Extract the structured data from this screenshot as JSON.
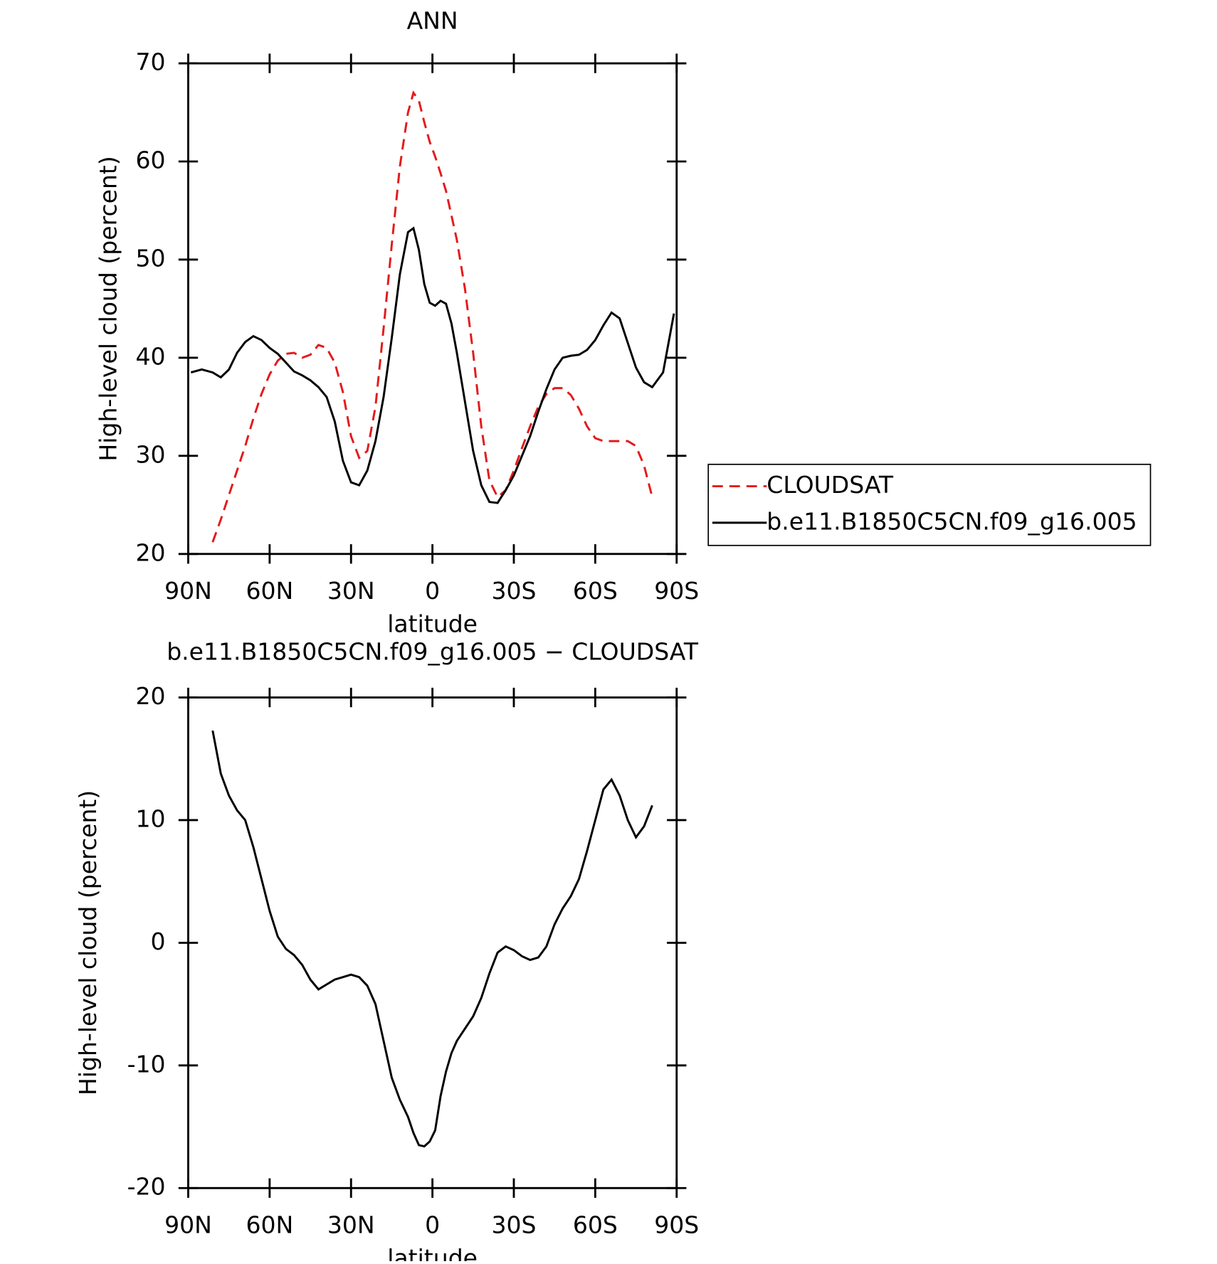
{
  "chart_data": [
    {
      "type": "line",
      "title": "ANN",
      "xlabel": "latitude",
      "ylabel": "High-level cloud (percent)",
      "x": [
        89,
        85,
        81,
        78,
        75,
        72,
        69,
        66,
        63,
        60,
        57,
        54,
        51,
        48,
        45,
        42,
        39,
        36,
        33,
        30,
        27,
        24,
        21,
        18,
        15,
        12,
        9,
        7,
        5,
        3,
        1,
        -1,
        -3,
        -5,
        -7,
        -9,
        -12,
        -15,
        -18,
        -21,
        -24,
        -27,
        -30,
        -33,
        -36,
        -39,
        -42,
        -45,
        -48,
        -51,
        -54,
        -57,
        -60,
        -63,
        -66,
        -69,
        -72,
        -75,
        -78,
        -81,
        -85,
        -89
      ],
      "series": [
        {
          "name": "CLOUDSAT",
          "color": "#e41a1c",
          "dashed": true,
          "values": [
            null,
            null,
            21.2,
            23.5,
            26.0,
            28.5,
            31.0,
            33.8,
            36.3,
            38.3,
            39.7,
            40.4,
            40.5,
            40.0,
            40.3,
            41.3,
            41.0,
            39.5,
            36.5,
            32.0,
            29.8,
            30.5,
            35.0,
            43.0,
            51.5,
            59.5,
            65.0,
            67.0,
            66.2,
            64.0,
            62.0,
            60.5,
            58.8,
            57.0,
            54.5,
            52.0,
            47.0,
            40.5,
            33.0,
            27.5,
            25.8,
            26.5,
            28.5,
            30.8,
            33.0,
            35.0,
            36.3,
            36.9,
            36.9,
            36.2,
            34.8,
            33.0,
            31.8,
            31.5,
            31.5,
            31.5,
            31.5,
            31.0,
            29.0,
            25.8,
            null,
            null
          ]
        },
        {
          "name": "b.e11.B1850C5CN.f09_g16.005",
          "color": "#000000",
          "dashed": false,
          "values": [
            38.5,
            38.8,
            38.5,
            38.0,
            38.8,
            40.5,
            41.6,
            42.2,
            41.8,
            41.0,
            40.4,
            39.5,
            38.6,
            38.2,
            37.7,
            37.0,
            36.0,
            33.5,
            29.5,
            27.3,
            27.0,
            28.5,
            31.5,
            36.0,
            42.0,
            48.5,
            52.8,
            53.2,
            51.0,
            47.5,
            45.6,
            45.3,
            45.8,
            45.5,
            43.5,
            40.5,
            35.5,
            30.5,
            27.0,
            25.3,
            25.2,
            26.5,
            28.0,
            30.0,
            32.0,
            34.5,
            36.8,
            38.8,
            40.0,
            40.2,
            40.3,
            40.8,
            41.8,
            43.3,
            44.6,
            44.0,
            41.5,
            39.0,
            37.5,
            37.0,
            38.5,
            44.5
          ]
        }
      ],
      "xlim": [
        90,
        -90
      ],
      "xticks": [
        {
          "value": 90,
          "label": "90N"
        },
        {
          "value": 60,
          "label": "60N"
        },
        {
          "value": 30,
          "label": "30N"
        },
        0,
        {
          "value": -30,
          "label": "30S"
        },
        {
          "value": -60,
          "label": "60S"
        },
        {
          "value": -90,
          "label": "90S"
        }
      ],
      "ylim": [
        20,
        70
      ],
      "yticks": [
        20,
        30,
        40,
        50,
        60,
        70
      ],
      "legend": "right"
    },
    {
      "type": "line",
      "title": "b.e11.B1850C5CN.f09_g16.005 − CLOUDSAT",
      "xlabel": "latitude",
      "ylabel": "High-level cloud (percent)",
      "x": [
        89,
        85,
        81,
        78,
        75,
        72,
        69,
        66,
        63,
        60,
        57,
        54,
        51,
        48,
        45,
        42,
        39,
        36,
        33,
        30,
        27,
        24,
        21,
        18,
        15,
        12,
        9,
        7,
        5,
        3,
        1,
        -1,
        -3,
        -5,
        -7,
        -9,
        -12,
        -15,
        -18,
        -21,
        -24,
        -27,
        -30,
        -33,
        -36,
        -39,
        -42,
        -45,
        -48,
        -51,
        -54,
        -57,
        -60,
        -63,
        -66,
        -69,
        -72,
        -75,
        -78,
        -81,
        -85,
        -89
      ],
      "series": [
        {
          "color": "#000000",
          "dashed": false,
          "values": [
            null,
            null,
            17.3,
            13.8,
            12.0,
            10.8,
            10.0,
            7.8,
            5.2,
            2.6,
            0.5,
            -0.5,
            -1.0,
            -1.8,
            -3.0,
            -3.8,
            -3.4,
            -3.0,
            -2.8,
            -2.6,
            -2.8,
            -3.5,
            -5.0,
            -8.0,
            -11.0,
            -12.8,
            -14.2,
            -15.5,
            -16.5,
            -16.6,
            -16.2,
            -15.3,
            -12.5,
            -10.5,
            -9.0,
            -8.0,
            -7.0,
            -6.0,
            -4.5,
            -2.5,
            -0.8,
            -0.3,
            -0.6,
            -1.1,
            -1.4,
            -1.2,
            -0.3,
            1.5,
            2.8,
            3.8,
            5.2,
            7.5,
            10.0,
            12.5,
            13.3,
            12.0,
            10.0,
            8.6,
            9.5,
            11.2,
            null,
            null
          ]
        }
      ],
      "xlim": [
        90,
        -90
      ],
      "xticks": [
        {
          "value": 90,
          "label": "90N"
        },
        {
          "value": 60,
          "label": "60N"
        },
        {
          "value": 30,
          "label": "30N"
        },
        0,
        {
          "value": -30,
          "label": "30S"
        },
        {
          "value": -60,
          "label": "60S"
        },
        {
          "value": -90,
          "label": "90S"
        }
      ],
      "ylim": [
        -20,
        20
      ],
      "yticks": [
        -20,
        -10,
        0,
        10,
        20
      ]
    }
  ]
}
